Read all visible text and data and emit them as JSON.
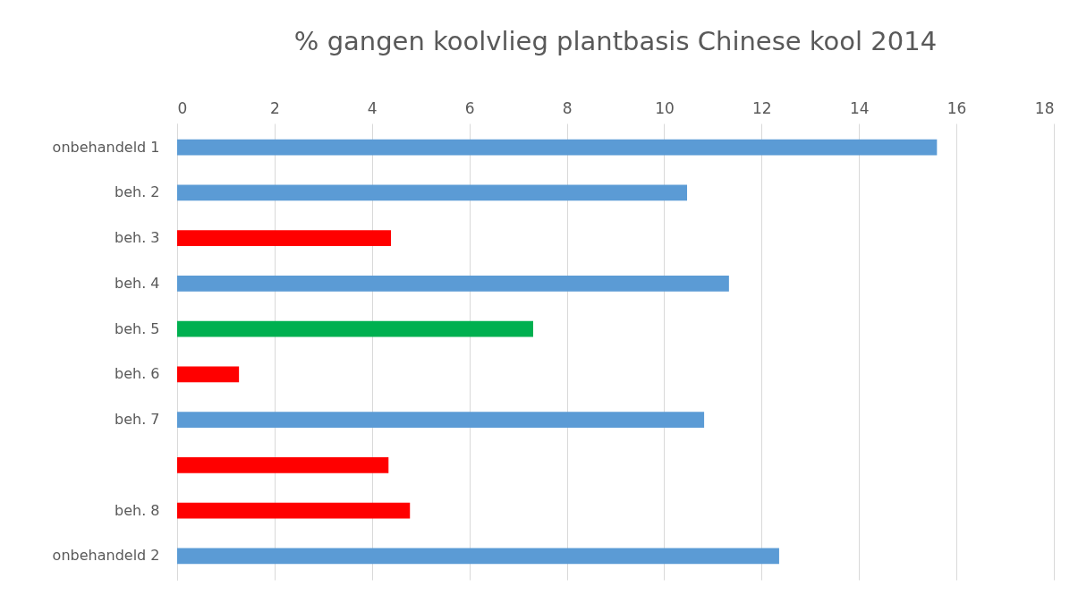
{
  "chart_data": {
    "type": "bar",
    "orientation": "horizontal",
    "title": "% gangen koolvlieg plantbasis Chinese kool 2014",
    "categories": [
      "onbehandeld 1",
      "beh. 2",
      "beh. 3",
      "beh. 4",
      "beh. 5",
      "beh. 6",
      "beh. 7",
      null,
      "beh. 8",
      "onbehandeld 2"
    ],
    "values": [
      15.6,
      10.47,
      4.39,
      11.33,
      7.31,
      1.27,
      10.82,
      4.34,
      4.78,
      12.36
    ],
    "colors": [
      "#5b9bd5",
      "#5b9bd5",
      "#ff0000",
      "#5b9bd5",
      "#00b050",
      "#ff0000",
      "#5b9bd5",
      "#ff0000",
      "#ff0000",
      "#5b9bd5"
    ],
    "xlim": [
      0,
      18
    ],
    "xticks": [
      0,
      2,
      4,
      6,
      8,
      10,
      12,
      14,
      16,
      18
    ],
    "grid": "x"
  }
}
